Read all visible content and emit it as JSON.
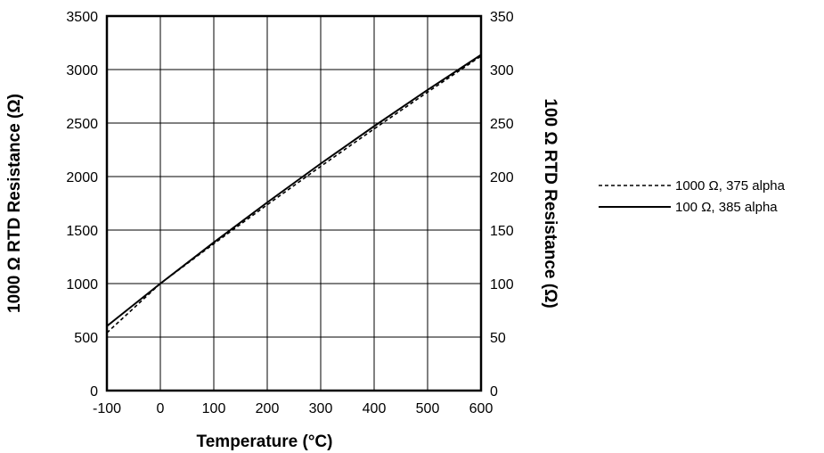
{
  "chart_data": {
    "type": "line",
    "xlabel": "Temperature (°C)",
    "ylabel_left": "1000 Ω RTD Resistance (Ω)",
    "ylabel_right": "100 Ω RTD Resistance (Ω)",
    "xlim": [
      -100,
      600
    ],
    "ylim_left": [
      0,
      3500
    ],
    "ylim_right": [
      0,
      350
    ],
    "x_ticks": [
      "-100",
      "0",
      "100",
      "200",
      "300",
      "400",
      "500",
      "600"
    ],
    "y_ticks_left": [
      "0",
      "500",
      "1000",
      "1500",
      "2000",
      "2500",
      "3000",
      "3500"
    ],
    "y_ticks_right": [
      "0",
      "50",
      "100",
      "150",
      "200",
      "250",
      "300",
      "350"
    ],
    "grid": true,
    "legend_position": "right",
    "series": [
      {
        "name": "1000 Ω, 375 alpha",
        "axis": "left",
        "style": "dashed",
        "x": [
          -100,
          0,
          100,
          200,
          300,
          400,
          500,
          600
        ],
        "y": [
          540,
          1000,
          1372,
          1737,
          2095,
          2446,
          2789,
          3126
        ]
      },
      {
        "name": "100 Ω, 385 alpha",
        "axis": "right",
        "style": "solid",
        "x": [
          -100,
          0,
          100,
          200,
          300,
          400,
          500,
          600
        ],
        "y": [
          60.26,
          100,
          138.51,
          175.86,
          212.05,
          247.09,
          280.98,
          313.71
        ]
      }
    ]
  }
}
